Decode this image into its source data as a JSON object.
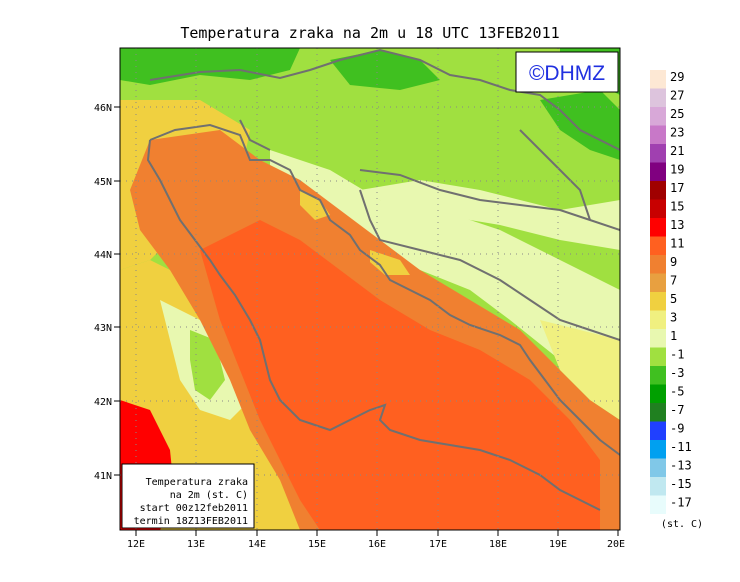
{
  "title": "Temperatura zraka na 2m u 18 UTC 13FEB2011",
  "logo": "©DHMZ",
  "info_box": {
    "line1": "Temperatura zraka",
    "line2": "na 2m (st. C)",
    "line3": "start 00z12feb2011",
    "line4": "termin 18Z13FEB2011"
  },
  "lon_labels": [
    "12E",
    "13E",
    "14E",
    "15E",
    "16E",
    "17E",
    "18E",
    "19E",
    "20E"
  ],
  "lat_labels": [
    "46N",
    "45N",
    "44N",
    "43N",
    "42N",
    "41N"
  ],
  "legend": {
    "unit": "(st. C)",
    "levels": [
      "29",
      "27",
      "25",
      "23",
      "21",
      "19",
      "17",
      "15",
      "13",
      "11",
      "9",
      "7",
      "5",
      "3",
      "1",
      "-1",
      "-3",
      "-5",
      "-7",
      "-9",
      "-11",
      "-13",
      "-15",
      "-17"
    ],
    "colors": [
      "#fde8d4",
      "#ddc4dd",
      "#d8a8d8",
      "#c878c8",
      "#a040b0",
      "#800080",
      "#a00000",
      "#c80000",
      "#ff0000",
      "#ff6020",
      "#f08030",
      "#e8a040",
      "#f0d040",
      "#f0f080",
      "#e8f8b0",
      "#a0e040",
      "#40c020",
      "#00a000",
      "#208020",
      "#2040ff",
      "#00a0f0",
      "#80c8e8",
      "#c0e8f0",
      "#e8fcfc"
    ]
  },
  "colors": {
    "sea_warm": "#ff6020",
    "coast_orange": "#f08030",
    "land_green": "#a0e040",
    "dark_green": "#40c020",
    "pale_green": "#e8f8b0",
    "yellow": "#f0d040",
    "red": "#ff0000",
    "border": "#707070"
  }
}
